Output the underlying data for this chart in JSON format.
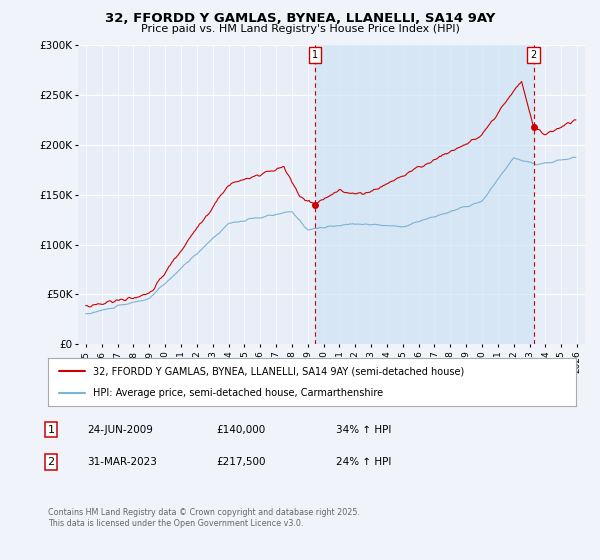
{
  "title": "32, FFORDD Y GAMLAS, BYNEA, LLANELLI, SA14 9AY",
  "subtitle": "Price paid vs. HM Land Registry's House Price Index (HPI)",
  "ylim": [
    0,
    300000
  ],
  "yticks": [
    0,
    50000,
    100000,
    150000,
    200000,
    250000,
    300000
  ],
  "ytick_labels": [
    "£0",
    "£50K",
    "£100K",
    "£150K",
    "£200K",
    "£250K",
    "£300K"
  ],
  "xlim_start": 1994.5,
  "xlim_end": 2026.5,
  "xticks": [
    1995,
    1996,
    1997,
    1998,
    1999,
    2000,
    2001,
    2002,
    2003,
    2004,
    2005,
    2006,
    2007,
    2008,
    2009,
    2010,
    2011,
    2012,
    2013,
    2014,
    2015,
    2016,
    2017,
    2018,
    2019,
    2020,
    2021,
    2022,
    2023,
    2024,
    2025,
    2026
  ],
  "sale1_x": 2009.48,
  "sale1_y": 140000,
  "sale1_label": "1",
  "sale2_x": 2023.25,
  "sale2_y": 217500,
  "sale2_label": "2",
  "red_line_color": "#cc0000",
  "blue_line_color": "#7ab3d4",
  "vline_color": "#cc0000",
  "shade_color": "#d0e4f5",
  "background_color": "#f0f4fa",
  "plot_bg_color": "#e8eef7",
  "grid_color": "#ffffff",
  "legend_label_red": "32, FFORDD Y GAMLAS, BYNEA, LLANELLI, SA14 9AY (semi-detached house)",
  "legend_label_blue": "HPI: Average price, semi-detached house, Carmarthenshire",
  "footnote": "Contains HM Land Registry data © Crown copyright and database right 2025.\nThis data is licensed under the Open Government Licence v3.0.",
  "table_rows": [
    [
      "1",
      "24-JUN-2009",
      "£140,000",
      "34% ↑ HPI"
    ],
    [
      "2",
      "31-MAR-2023",
      "£217,500",
      "24% ↑ HPI"
    ]
  ]
}
